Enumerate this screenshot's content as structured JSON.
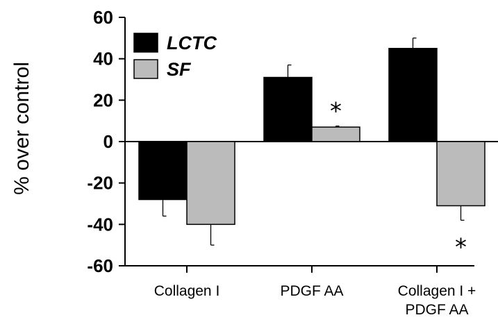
{
  "chart_data": {
    "type": "bar",
    "ylabel": "% over control",
    "ylim": [
      -60,
      60
    ],
    "yticks": [
      60,
      40,
      20,
      0,
      -20,
      -40,
      -60
    ],
    "yticklabels": [
      "60",
      "40",
      "20",
      "0",
      "-20",
      "-40",
      "-60"
    ],
    "categories": [
      [
        "Collagen I"
      ],
      [
        "PDGF AA"
      ],
      [
        "Collagen I +",
        "PDGF AA"
      ]
    ],
    "series": [
      {
        "name": "LCTC",
        "color": "#000000",
        "values": [
          -28,
          31,
          45
        ],
        "errors": [
          8,
          6,
          5
        ]
      },
      {
        "name": "SF",
        "color": "#bbbbbb",
        "values": [
          -40,
          7,
          -31
        ],
        "errors": [
          10,
          0.5,
          7
        ]
      }
    ],
    "significance": [
      {
        "category": 1,
        "series": 1,
        "mark": "*"
      },
      {
        "category": 2,
        "series": 1,
        "mark": "*"
      }
    ],
    "legend": {
      "placement": "top-left"
    },
    "grid": false
  }
}
